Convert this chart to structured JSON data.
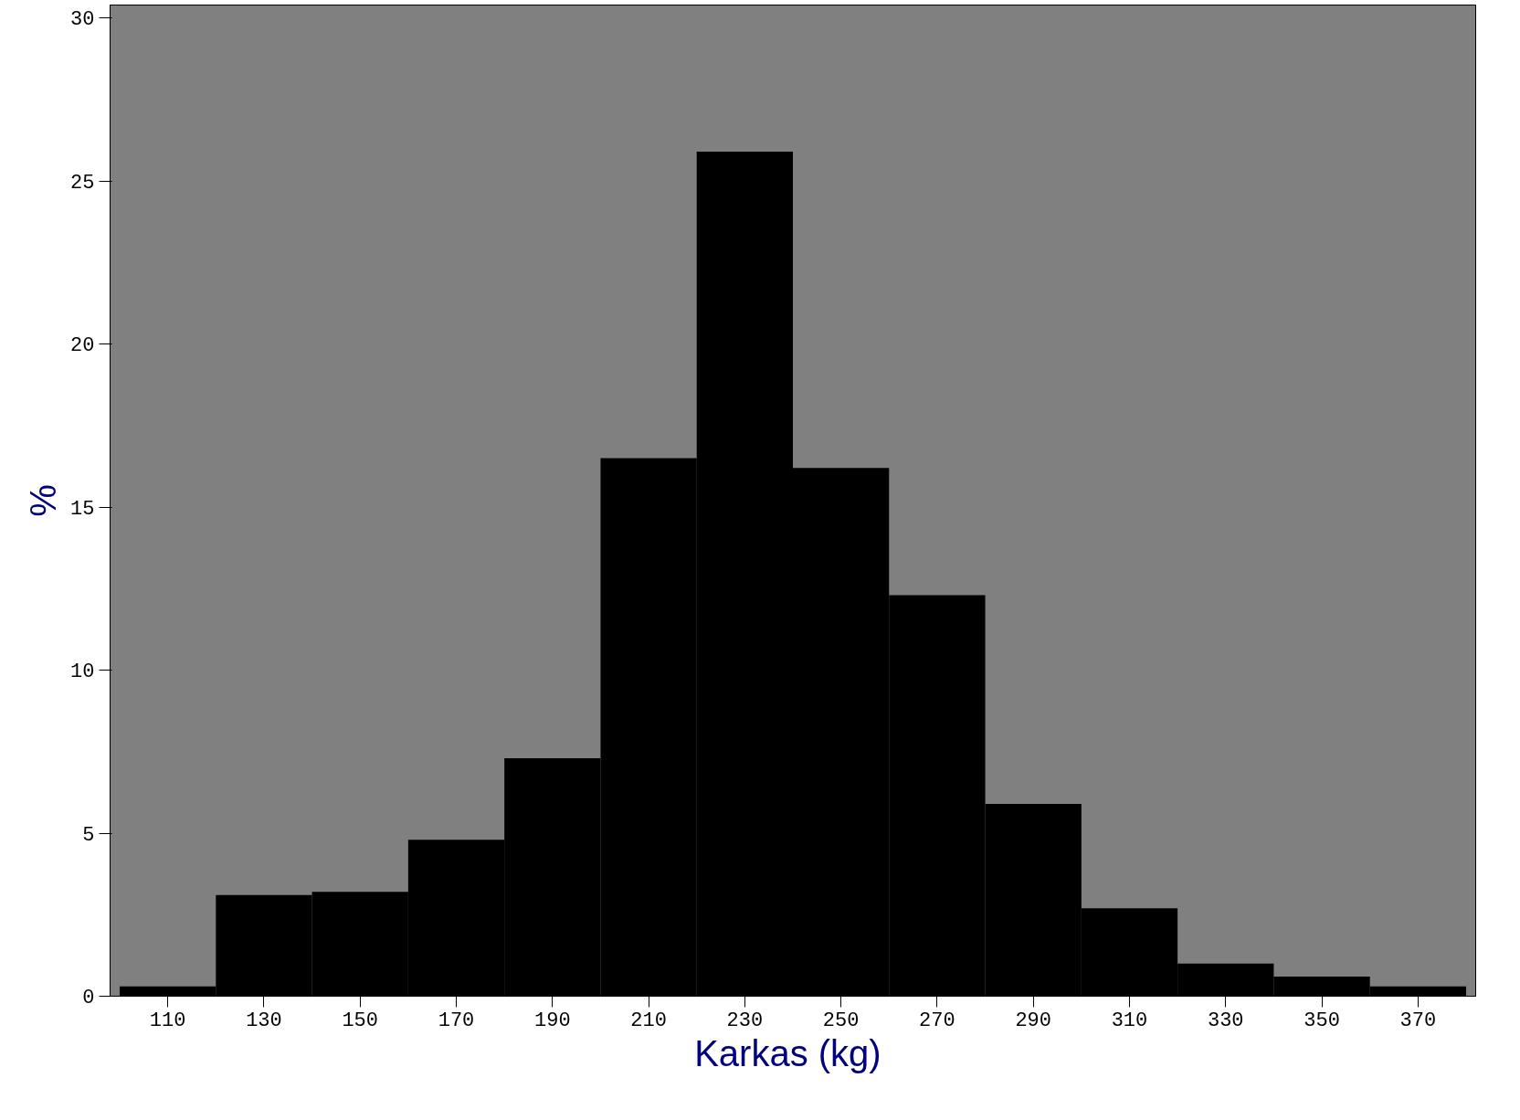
{
  "chart_data": {
    "type": "histogram",
    "xlabel": "Karkas  (kg)",
    "ylabel": "%",
    "bins": [
      100,
      120,
      140,
      160,
      180,
      200,
      220,
      240,
      260,
      280,
      300,
      320,
      340,
      360,
      380
    ],
    "values": [
      0.3,
      3.1,
      3.2,
      4.8,
      7.3,
      16.5,
      25.9,
      16.2,
      12.3,
      5.9,
      2.7,
      1.0,
      0.6,
      0.3
    ],
    "color": "#000000",
    "xlim": [
      98,
      382
    ],
    "xticks": [
      110,
      130,
      150,
      170,
      190,
      210,
      230,
      250,
      270,
      290,
      310,
      330,
      350,
      370
    ],
    "ylim": [
      0,
      30.4
    ],
    "yticks": [
      0,
      5,
      10,
      15,
      20,
      25,
      30
    ],
    "grid": false
  }
}
